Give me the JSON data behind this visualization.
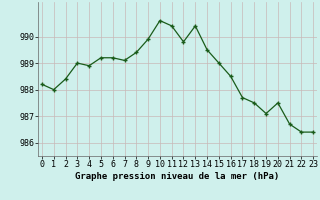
{
  "x": [
    0,
    1,
    2,
    3,
    4,
    5,
    6,
    7,
    8,
    9,
    10,
    11,
    12,
    13,
    14,
    15,
    16,
    17,
    18,
    19,
    20,
    21,
    22,
    23
  ],
  "y": [
    988.2,
    988.0,
    988.4,
    989.0,
    988.9,
    989.2,
    989.2,
    989.1,
    989.4,
    989.9,
    990.6,
    990.4,
    989.8,
    990.4,
    989.5,
    989.0,
    988.5,
    987.7,
    987.5,
    987.1,
    987.5,
    986.7,
    986.4,
    986.4
  ],
  "line_color": "#1a5c1a",
  "marker_color": "#1a5c1a",
  "bg_color": "#cff0ec",
  "grid_color": "#c8b8b8",
  "xlabel": "Graphe pression niveau de la mer (hPa)",
  "xlabel_fontsize": 6.5,
  "tick_fontsize": 6.0,
  "ylim": [
    985.5,
    991.3
  ],
  "yticks": [
    986,
    987,
    988,
    989,
    990
  ],
  "xticks": [
    0,
    1,
    2,
    3,
    4,
    5,
    6,
    7,
    8,
    9,
    10,
    11,
    12,
    13,
    14,
    15,
    16,
    17,
    18,
    19,
    20,
    21,
    22,
    23
  ]
}
